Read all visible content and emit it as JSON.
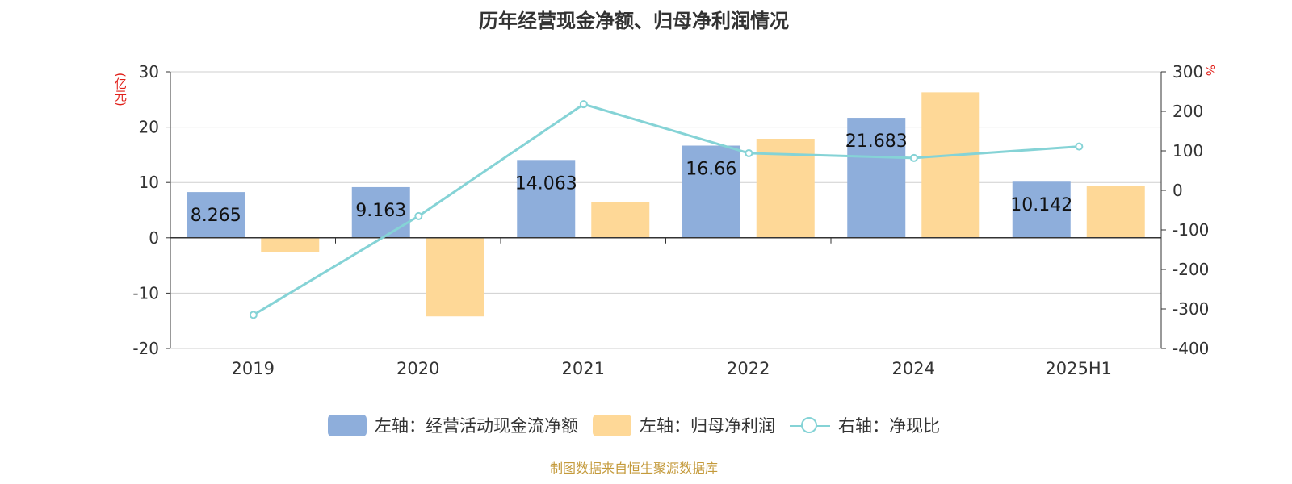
{
  "page": {
    "title": "历年经营现金净额、归母净利润情况",
    "left_unit": "(亿元)",
    "right_unit": "%",
    "source": "制图数据来自恒生聚源数据库"
  },
  "colors": {
    "series_1": "#8eaedb",
    "series_2": "#fed897",
    "series_3": "#85d3d6",
    "unit": "#e0201a"
  },
  "chart_data": {
    "type": "bar",
    "title": "历年经营现金净额、归母净利润情况",
    "categories": [
      "2019",
      "2020",
      "2021",
      "2022",
      "2024",
      "2025H1"
    ],
    "y_left": {
      "label": "(亿元)",
      "range": [
        -20,
        30
      ],
      "ticks": [
        30,
        20,
        10,
        0,
        -10,
        -20
      ]
    },
    "y_right": {
      "label": "%",
      "range": [
        -400,
        300
      ],
      "ticks": [
        300,
        200,
        100,
        0,
        -100,
        -200,
        -300,
        -400
      ]
    },
    "grid": true,
    "legend_position": "bottom",
    "series": [
      {
        "name": "左轴：经营活动现金流净额",
        "type": "bar",
        "axis": "left",
        "values": [
          8.265,
          9.163,
          14.063,
          16.66,
          21.683,
          10.142
        ],
        "labels": [
          "8.265",
          "9.163",
          "14.063",
          "16.66",
          "21.683",
          "10.142"
        ]
      },
      {
        "name": "左轴：归母净利润",
        "type": "bar",
        "axis": "left",
        "values": [
          -2.6,
          -14.2,
          6.5,
          17.9,
          26.3,
          9.3
        ]
      },
      {
        "name": "右轴：净现比",
        "type": "line",
        "axis": "right",
        "values": [
          -315,
          -65,
          218,
          94,
          82,
          111
        ]
      }
    ]
  }
}
